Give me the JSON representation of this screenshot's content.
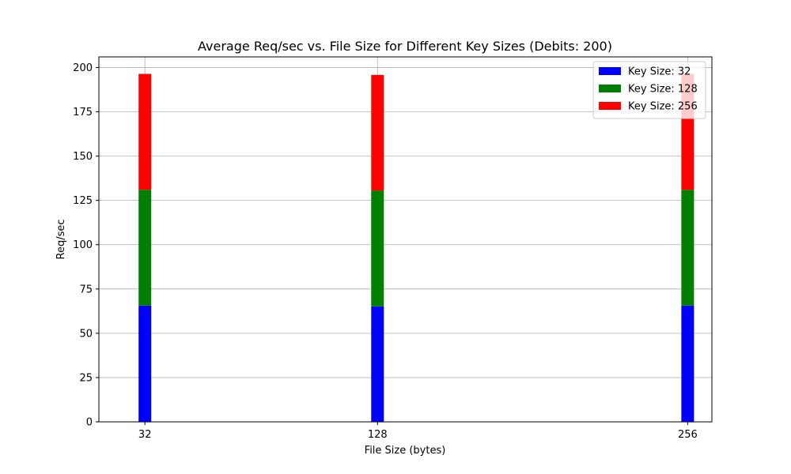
{
  "chart_data": {
    "type": "bar",
    "stacked": true,
    "title": "Average Req/sec vs. File Size for Different Key Sizes (Debits: 200)",
    "xlabel": "File Size (bytes)",
    "ylabel": "Req/sec",
    "x": [
      32,
      128,
      256
    ],
    "x_tick_labels": [
      "32",
      "128",
      "256"
    ],
    "xlim": [
      13,
      266
    ],
    "ylim": [
      0,
      206
    ],
    "y_ticks": [
      0,
      25,
      50,
      75,
      100,
      125,
      150,
      175,
      200
    ],
    "y_tick_labels": [
      "0",
      "25",
      "50",
      "75",
      "100",
      "125",
      "150",
      "175",
      "200"
    ],
    "grid": true,
    "legend_position": "top-right",
    "series": [
      {
        "name": "Key Size: 32",
        "color": "#0000ff",
        "values": [
          65.6,
          65.2,
          65.6
        ]
      },
      {
        "name": "Key Size: 128",
        "color": "#008000",
        "values": [
          65.4,
          65.4,
          65.4
        ]
      },
      {
        "name": "Key Size: 256",
        "color": "#ff0000",
        "values": [
          65.4,
          65.2,
          65.4
        ]
      }
    ]
  }
}
